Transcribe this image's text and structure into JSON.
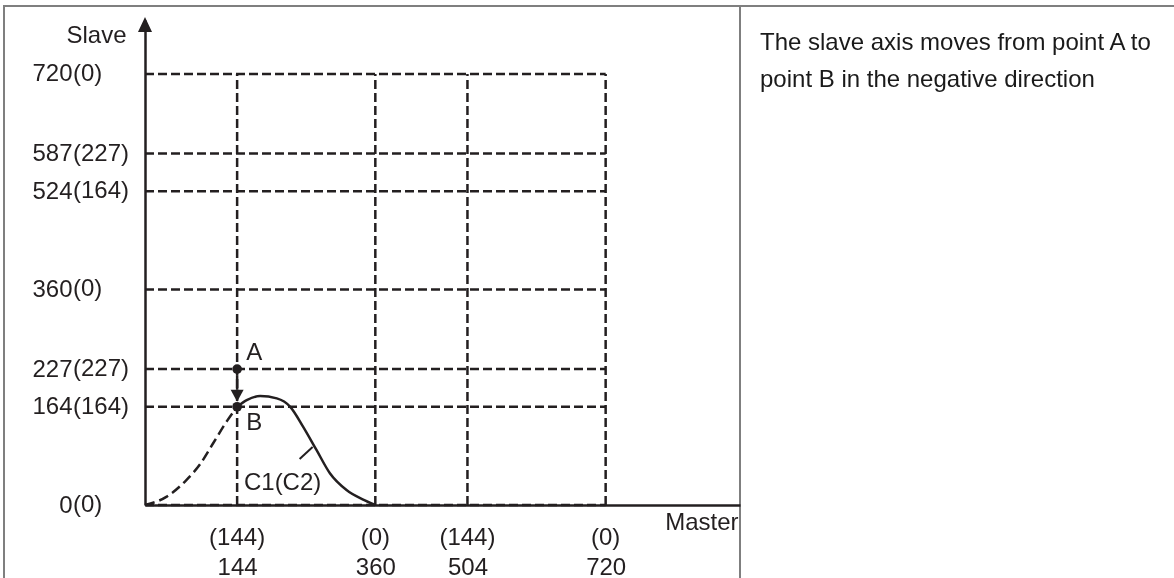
{
  "chart_data": {
    "type": "line",
    "xlabel": "Master",
    "ylabel": "Slave",
    "xlim": [
      0,
      930
    ],
    "ylim": [
      0,
      810
    ],
    "xticks": [
      144,
      360,
      504,
      720
    ],
    "yticks": [
      0,
      164,
      227,
      360,
      524,
      587,
      720
    ],
    "grid": true,
    "series": [
      {
        "color": "#231f20",
        "line_style": "dashed",
        "x": [
          0,
          34,
          65,
          86,
          107,
          128,
          144
        ],
        "values": [
          0,
          14,
          42,
          68,
          104,
          140,
          164
        ]
      },
      {
        "color": "#231f20",
        "line_style": "solid",
        "x": [
          144,
          159,
          180,
          206,
          227,
          247,
          268,
          289,
          315,
          341,
          360
        ],
        "values": [
          164,
          175,
          182,
          178,
          164,
          131,
          92,
          53,
          25,
          9,
          0
        ]
      },
      {
        "type": "scatter",
        "color": "#231f20",
        "marker": "circle",
        "x": [
          144,
          144
        ],
        "values": [
          227,
          164
        ]
      }
    ],
    "annotations": [
      "A",
      "B",
      {
        "text": "C1(C2)",
        "x": 262,
        "y": 97
      },
      "(0)",
      "(164)",
      "(227)",
      "(0)",
      "(164)",
      "(227)",
      "(0)",
      "(144)",
      "(0)",
      "(144)",
      "(0)",
      "The slave axis moves from point A to point B in the negative direction"
    ]
  }
}
